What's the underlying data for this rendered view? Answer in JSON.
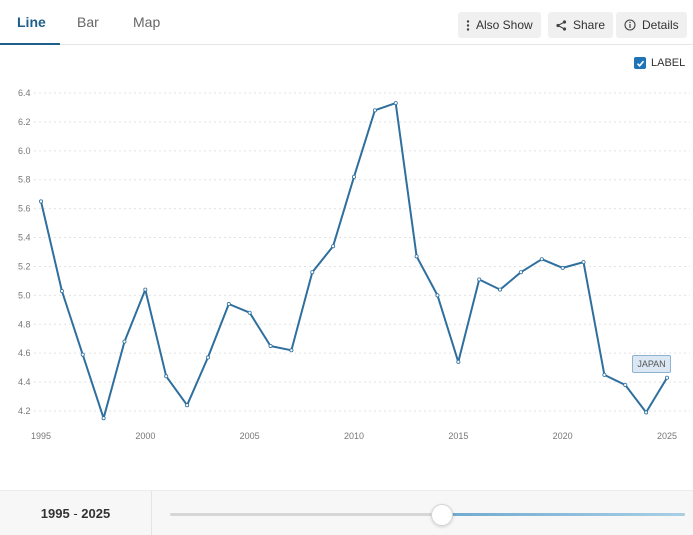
{
  "tabs": [
    {
      "label": "Line",
      "active": true
    },
    {
      "label": "Bar",
      "active": false
    },
    {
      "label": "Map",
      "active": false
    }
  ],
  "toolbar": {
    "also_show_label": "Also Show",
    "share_label": "Share",
    "details_label": "Details"
  },
  "label_toggle": {
    "text": "LABEL",
    "checked": true
  },
  "series_tag": "JAPAN",
  "footer": {
    "range_start": "1995",
    "range_sep": "-",
    "range_end": "2025"
  },
  "colors": {
    "line": "#2e6f9e",
    "accent": "#1f73b7",
    "grid": "#e2e2e2"
  },
  "chart_data": {
    "type": "line",
    "title": "",
    "xlabel": "",
    "ylabel": "",
    "ylim": [
      4.2,
      6.4
    ],
    "xlim": [
      1995,
      2025
    ],
    "yticks": [
      "6.4",
      "6.2",
      "6.0",
      "5.8",
      "5.6",
      "5.4",
      "5.2",
      "5.0",
      "4.8",
      "4.6",
      "4.4",
      "4.2"
    ],
    "xticks": [
      "1995",
      "2000",
      "2005",
      "2010",
      "2015",
      "2020",
      "2025"
    ],
    "grid": true,
    "series": [
      {
        "name": "JAPAN",
        "x": [
          1995,
          1996,
          1997,
          1998,
          1999,
          2000,
          2001,
          2002,
          2003,
          2004,
          2005,
          2006,
          2007,
          2008,
          2009,
          2010,
          2011,
          2012,
          2013,
          2014,
          2015,
          2016,
          2017,
          2018,
          2019,
          2020,
          2021,
          2022,
          2023,
          2024,
          2025
        ],
        "values": [
          5.65,
          5.03,
          4.59,
          4.15,
          4.68,
          5.04,
          4.44,
          4.24,
          4.57,
          4.94,
          4.88,
          4.65,
          4.62,
          5.16,
          5.34,
          5.82,
          6.28,
          6.33,
          5.27,
          5.0,
          4.54,
          5.11,
          5.04,
          5.16,
          5.25,
          5.19,
          5.23,
          4.45,
          4.38,
          4.19,
          4.43
        ]
      }
    ]
  }
}
